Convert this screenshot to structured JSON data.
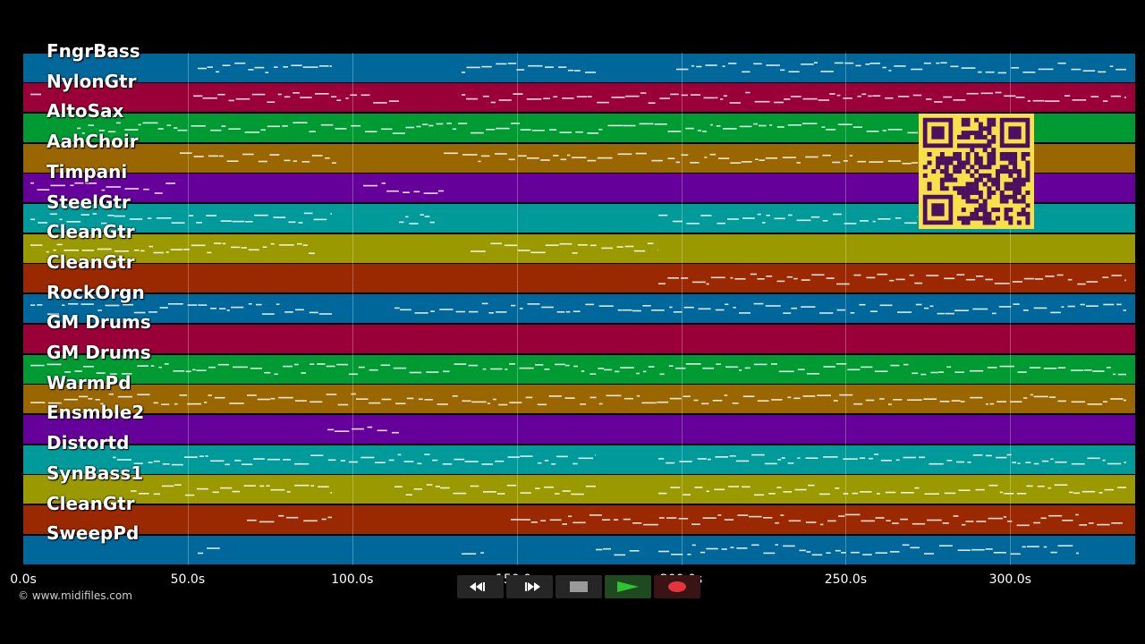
{
  "tracks": [
    {
      "name": "FngrBass",
      "color": "#00679a"
    },
    {
      "name": "NylonGtr",
      "color": "#9a0037"
    },
    {
      "name": "AltoSax",
      "color": "#009a33"
    },
    {
      "name": "AahChoir",
      "color": "#9a6600"
    },
    {
      "name": "Timpani",
      "color": "#66009a"
    },
    {
      "name": "SteelGtr",
      "color": "#009a9a"
    },
    {
      "name": "CleanGtr",
      "color": "#9a9a00"
    },
    {
      "name": "CleanGtr",
      "color": "#9a2800"
    },
    {
      "name": "RockOrgn",
      "color": "#00679a"
    },
    {
      "name": "GM Drums",
      "color": "#9a0037"
    },
    {
      "name": "GM Drums",
      "color": "#009a33"
    },
    {
      "name": "WarmPd",
      "color": "#9a6600"
    },
    {
      "name": "Ensmble2",
      "color": "#66009a"
    },
    {
      "name": "Distortd",
      "color": "#009a9a"
    },
    {
      "name": "SynBass1",
      "color": "#9a9a00"
    },
    {
      "name": "CleanGtr",
      "color": "#9a2800"
    },
    {
      "name": "SweepPd",
      "color": "#00679a"
    }
  ],
  "timeline": {
    "ticks": [
      "0.0s",
      "50.0s",
      "100.0s",
      "150.0s",
      "200.0s",
      "250.0s",
      "300.0s"
    ],
    "tick_values": [
      0,
      50,
      100,
      150,
      200,
      250,
      300
    ],
    "max_seconds": 338
  },
  "copyright": "© www.midifiles.com",
  "transport": [
    {
      "name": "rewind-icon"
    },
    {
      "name": "fast-forward-icon"
    },
    {
      "name": "stop-icon"
    },
    {
      "name": "play-icon"
    },
    {
      "name": "record-icon"
    }
  ]
}
